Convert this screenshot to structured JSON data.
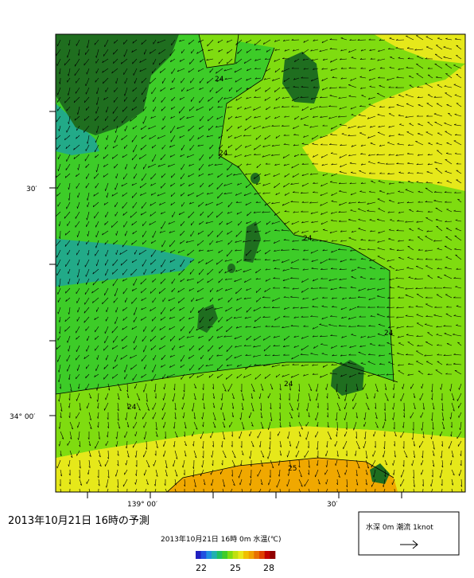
{
  "map": {
    "lat_labels": [
      "30′",
      "34° 00′"
    ],
    "lon_labels": [
      "139° 00′",
      "30′"
    ],
    "contour_labels": [
      "24",
      "24",
      "24",
      "24",
      "24",
      "24",
      "25"
    ]
  },
  "caption": "2013年10月21日  16時の予測",
  "colorbar": {
    "title": "2013年10月21日 16時 0m 水温(℃)",
    "labels": [
      "22",
      "25",
      "28"
    ]
  },
  "legend": {
    "text": "水深 0m 潮流 1knot"
  }
}
